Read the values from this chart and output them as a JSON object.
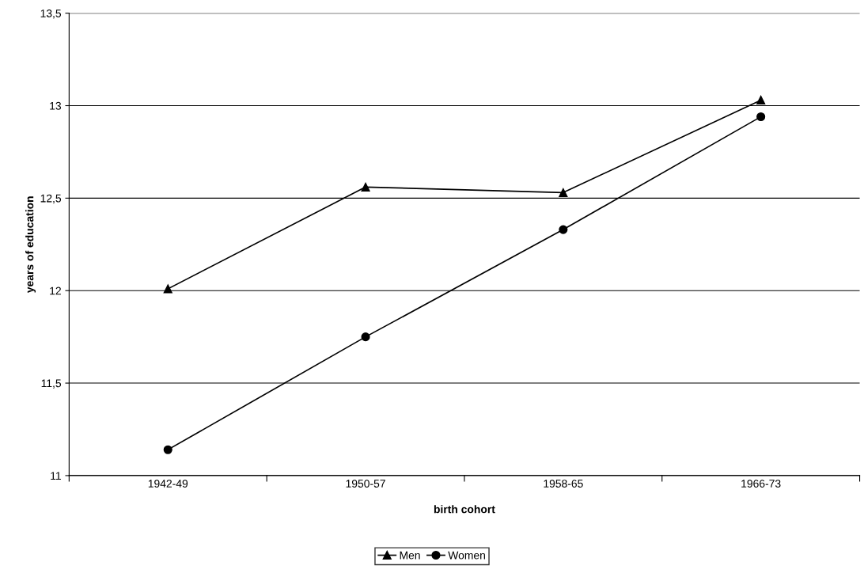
{
  "chart_data": {
    "type": "line",
    "xlabel": "birth cohort",
    "ylabel": "years of education",
    "categories": [
      "1942-49",
      "1950-57",
      "1958-65",
      "1966-73"
    ],
    "series": [
      {
        "name": "Men",
        "color": "#000000",
        "marker": "triangle",
        "values": [
          12.01,
          12.56,
          12.53,
          13.03
        ]
      },
      {
        "name": "Women",
        "color": "#000000",
        "marker": "circle",
        "values": [
          11.14,
          11.75,
          12.33,
          12.94
        ]
      }
    ],
    "ylim": [
      11,
      13.5
    ],
    "yticks": [
      11,
      {
        "value": 11.5,
        "label": "11,5"
      },
      12,
      {
        "value": 12.5,
        "label": "12,5"
      },
      13,
      {
        "value": 13.5,
        "label": "13,5"
      }
    ],
    "grid": "y",
    "legend": "bottom",
    "line_style": "solid"
  }
}
